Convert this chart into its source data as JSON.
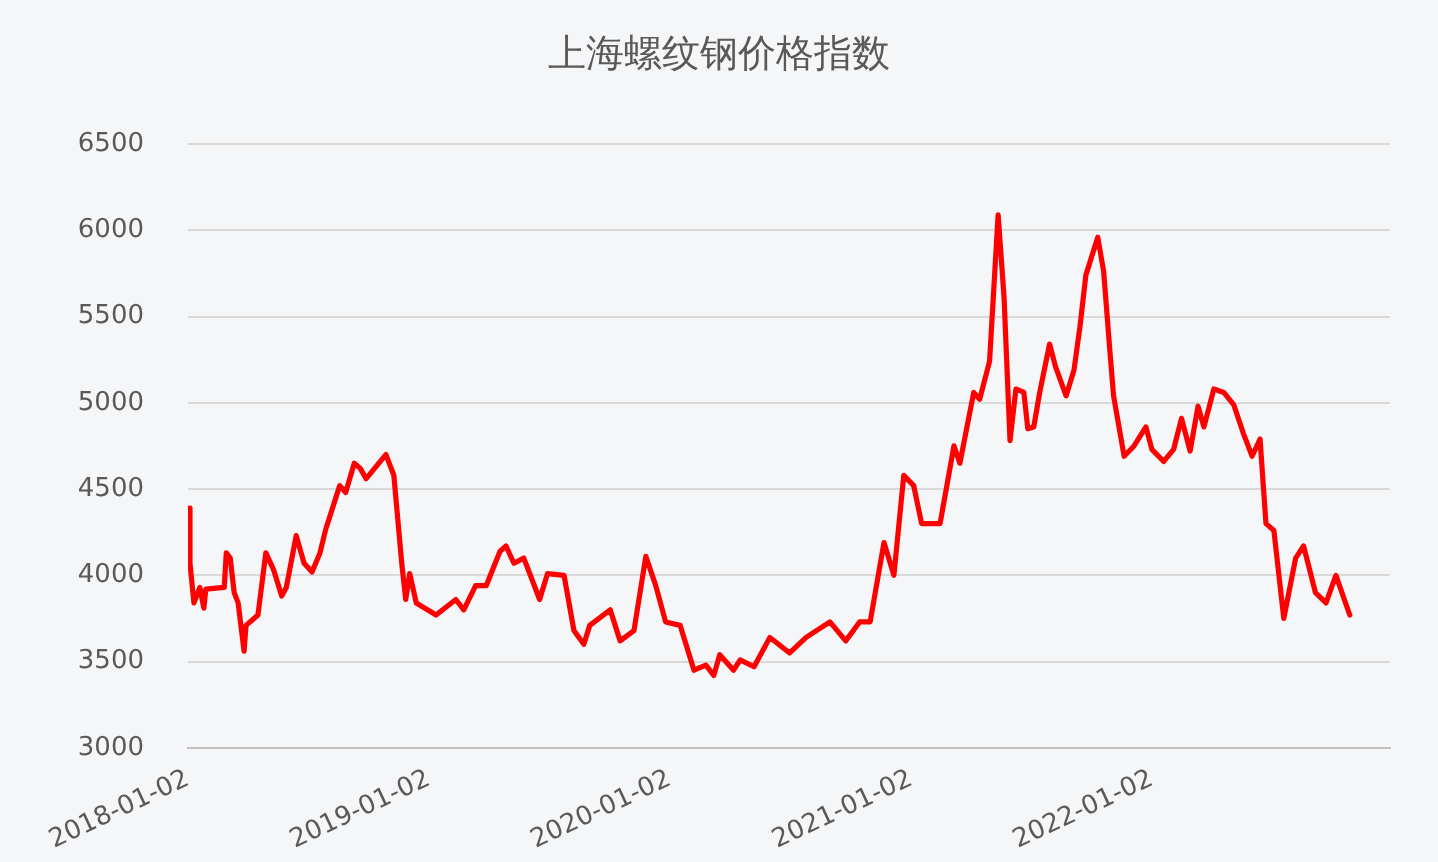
{
  "chart_data": {
    "type": "line",
    "title": "上海螺纹钢价格指数",
    "x": [
      "2018-01-02",
      "2018-01-05",
      "2018-01-11",
      "2018-01-20",
      "2018-01-26",
      "2018-01-29",
      "2018-02-26",
      "2018-03-01",
      "2018-03-07",
      "2018-03-13",
      "2018-03-19",
      "2018-03-28",
      "2018-03-31",
      "2018-04-18",
      "2018-04-30",
      "2018-05-12",
      "2018-05-24",
      "2018-05-31",
      "2018-06-15",
      "2018-06-27",
      "2018-07-09",
      "2018-07-21",
      "2018-07-30",
      "2018-08-20",
      "2018-08-29",
      "2018-09-11",
      "2018-09-20",
      "2018-09-29",
      "2018-10-29",
      "2018-11-10",
      "2018-11-22",
      "2018-11-28",
      "2018-12-04",
      "2018-12-14",
      "2019-01-13",
      "2019-02-12",
      "2019-02-24",
      "2019-03-14",
      "2019-03-30",
      "2019-04-20",
      "2019-04-29",
      "2019-05-11",
      "2019-05-26",
      "2019-06-19",
      "2019-07-01",
      "2019-07-26",
      "2019-08-10",
      "2019-08-25",
      "2019-09-03",
      "2019-10-04",
      "2019-10-19",
      "2019-11-09",
      "2019-11-27",
      "2019-12-12",
      "2019-12-27",
      "2020-01-18",
      "2020-02-08",
      "2020-02-26",
      "2020-03-09",
      "2020-03-18",
      "2020-04-08",
      "2020-04-18",
      "2020-05-09",
      "2020-06-02",
      "2020-07-02",
      "2020-07-27",
      "2020-09-01",
      "2020-09-25",
      "2020-10-16",
      "2020-11-01",
      "2020-11-22",
      "2020-12-07",
      "2020-12-22",
      "2021-01-06",
      "2021-01-18",
      "2021-02-15",
      "2021-03-08",
      "2021-03-17",
      "2021-04-07",
      "2021-04-16",
      "2021-05-01",
      "2021-05-14",
      "2021-05-23",
      "2021-06-01",
      "2021-06-10",
      "2021-06-22",
      "2021-06-28",
      "2021-07-07",
      "2021-07-16",
      "2021-07-31",
      "2021-08-09",
      "2021-08-25",
      "2021-09-06",
      "2021-09-15",
      "2021-09-24",
      "2021-10-12",
      "2021-10-21",
      "2021-10-30",
      "2021-11-05",
      "2021-11-21",
      "2021-12-06",
      "2021-12-24",
      "2022-01-02",
      "2022-01-20",
      "2022-02-04",
      "2022-02-16",
      "2022-03-01",
      "2022-03-13",
      "2022-03-22",
      "2022-04-06",
      "2022-04-21",
      "2022-05-06",
      "2022-05-21",
      "2022-06-03",
      "2022-06-15",
      "2022-06-24",
      "2022-07-06",
      "2022-07-21",
      "2022-08-08",
      "2022-08-20",
      "2022-09-07",
      "2022-09-23",
      "2022-10-08",
      "2022-10-29"
    ],
    "series": [
      {
        "color": "#ff0000",
        "values": [
          4390,
          4070,
          3840,
          3930,
          3810,
          3920,
          3930,
          4130,
          4100,
          3900,
          3840,
          3560,
          3710,
          3770,
          4130,
          4030,
          3880,
          3930,
          4230,
          4070,
          4020,
          4130,
          4270,
          4520,
          4480,
          4650,
          4620,
          4560,
          4700,
          4580,
          4070,
          3860,
          4010,
          3840,
          3770,
          3860,
          3800,
          3940,
          3940,
          4140,
          4170,
          4070,
          4100,
          3860,
          4010,
          4000,
          3680,
          3600,
          3710,
          3800,
          3620,
          3680,
          4110,
          3940,
          3730,
          3710,
          3450,
          3480,
          3420,
          3540,
          3450,
          3510,
          3470,
          3640,
          3550,
          3640,
          3730,
          3620,
          3730,
          3730,
          4190,
          4000,
          4580,
          4520,
          4300,
          4300,
          4750,
          4650,
          5060,
          5020,
          5240,
          6090,
          5610,
          4780,
          5080,
          5060,
          4850,
          4860,
          5060,
          5340,
          5210,
          5040,
          5190,
          5440,
          5740,
          5960,
          5760,
          5320,
          5040,
          4690,
          4750,
          4860,
          4730,
          4660,
          4730,
          4910,
          4720,
          4980,
          4860,
          5080,
          5060,
          4990,
          4820,
          4690,
          4790,
          4300,
          4260,
          3750,
          4100,
          4170,
          3900,
          3840,
          4000,
          3770
        ]
      }
    ],
    "xlim": [
      "2018-01-02",
      "2022-12-29"
    ],
    "xticks": [
      "2018-01-02",
      "2019-01-02",
      "2020-01-02",
      "2021-01-02",
      "2022-01-02"
    ],
    "ylim": [
      3000,
      6500
    ],
    "yticks": [
      3000,
      3500,
      4000,
      4500,
      5000,
      5500,
      6000,
      6500
    ],
    "grid": "y",
    "legend": false,
    "marker": "none",
    "line_style": "solid"
  }
}
